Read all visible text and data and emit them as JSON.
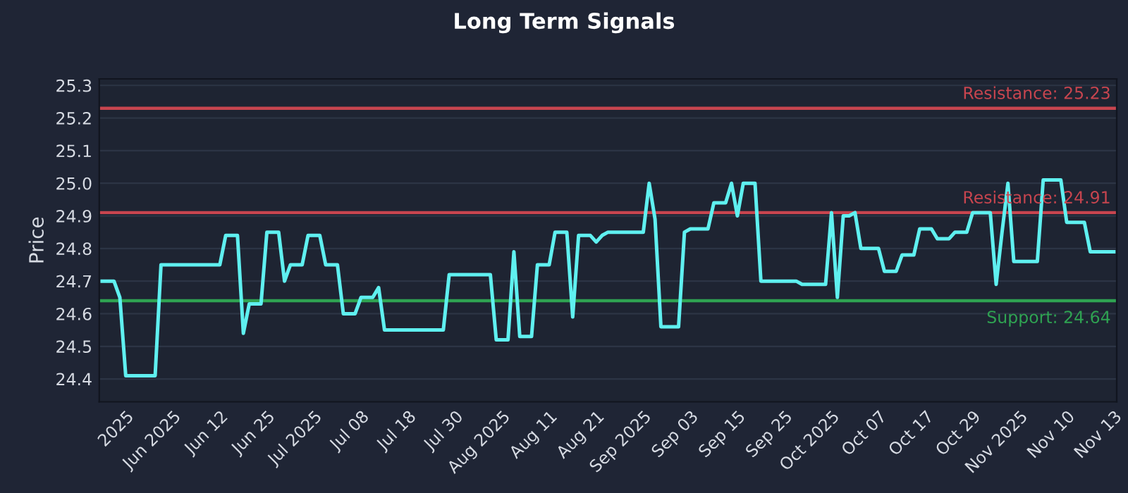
{
  "chart_data": {
    "type": "line",
    "title": "Long Term Signals",
    "ylabel": "Price",
    "categories": [
      null,
      null,
      null,
      null,
      "2025",
      null,
      null,
      null,
      null,
      null,
      null,
      null,
      "Jun 2025",
      null,
      null,
      null,
      null,
      null,
      null,
      null,
      "Jun 12",
      null,
      null,
      null,
      null,
      null,
      null,
      null,
      "Jun 25",
      null,
      null,
      null,
      null,
      null,
      null,
      null,
      "Jul 2025",
      null,
      null,
      null,
      null,
      null,
      null,
      null,
      "Jul 08",
      null,
      null,
      null,
      null,
      null,
      null,
      null,
      "Jul 18",
      null,
      null,
      null,
      null,
      null,
      null,
      null,
      "Jul 30",
      null,
      null,
      null,
      null,
      null,
      null,
      null,
      "Aug 2025",
      null,
      null,
      null,
      null,
      null,
      null,
      null,
      "Aug 11",
      null,
      null,
      null,
      null,
      null,
      null,
      null,
      "Aug 21",
      null,
      null,
      null,
      null,
      null,
      null,
      null,
      "Sep 2025",
      null,
      null,
      null,
      null,
      null,
      null,
      null,
      "Sep 03",
      null,
      null,
      null,
      null,
      null,
      null,
      null,
      "Sep 15",
      null,
      null,
      null,
      null,
      null,
      null,
      null,
      "Sep 25",
      null,
      null,
      null,
      null,
      null,
      null,
      null,
      "Oct 2025",
      null,
      null,
      null,
      null,
      null,
      null,
      null,
      "Oct 07",
      null,
      null,
      null,
      null,
      null,
      null,
      null,
      "Oct 17",
      null,
      null,
      null,
      null,
      null,
      null,
      null,
      "Oct 29",
      null,
      null,
      null,
      null,
      null,
      null,
      null,
      "Nov 2025",
      null,
      null,
      null,
      null,
      null,
      null,
      null,
      "Nov 10",
      null,
      null,
      null,
      null,
      null,
      null,
      null,
      "Nov 13"
    ],
    "series": [
      {
        "color": "#5ff0f0",
        "values": [
          24.7,
          24.7,
          24.7,
          24.65,
          24.41,
          24.41,
          24.41,
          24.41,
          24.41,
          24.41,
          24.75,
          24.75,
          24.75,
          24.75,
          24.75,
          24.75,
          24.75,
          24.75,
          24.75,
          24.75,
          24.75,
          24.84,
          24.84,
          24.84,
          24.54,
          24.63,
          24.63,
          24.63,
          24.85,
          24.85,
          24.85,
          24.7,
          24.75,
          24.75,
          24.75,
          24.84,
          24.84,
          24.84,
          24.75,
          24.75,
          24.75,
          24.6,
          24.6,
          24.6,
          24.65,
          24.65,
          24.65,
          24.68,
          24.55,
          24.55,
          24.55,
          24.55,
          24.55,
          24.55,
          24.55,
          24.55,
          24.55,
          24.55,
          24.55,
          24.72,
          24.72,
          24.72,
          24.72,
          24.72,
          24.72,
          24.72,
          24.72,
          24.52,
          24.52,
          24.52,
          24.79,
          24.53,
          24.53,
          24.53,
          24.75,
          24.75,
          24.75,
          24.85,
          24.85,
          24.85,
          24.59,
          24.84,
          24.84,
          24.84,
          24.82,
          24.84,
          24.85,
          24.85,
          24.85,
          24.85,
          24.85,
          24.85,
          24.85,
          25.0,
          24.89,
          24.56,
          24.56,
          24.56,
          24.56,
          24.85,
          24.86,
          24.86,
          24.86,
          24.86,
          24.94,
          24.94,
          24.94,
          25.0,
          24.9,
          25.0,
          25.0,
          25.0,
          24.7,
          24.7,
          24.7,
          24.7,
          24.7,
          24.7,
          24.7,
          24.69,
          24.69,
          24.69,
          24.69,
          24.69,
          24.91,
          24.65,
          24.9,
          24.9,
          24.91,
          24.8,
          24.8,
          24.8,
          24.8,
          24.73,
          24.73,
          24.73,
          24.78,
          24.78,
          24.78,
          24.86,
          24.86,
          24.86,
          24.83,
          24.83,
          24.83,
          24.85,
          24.85,
          24.85,
          24.91,
          24.91,
          24.91,
          24.91,
          24.69,
          24.85,
          25.0,
          24.76,
          24.76,
          24.76,
          24.76,
          24.76,
          25.01,
          25.01,
          25.01,
          25.01,
          24.88,
          24.88,
          24.88,
          24.88,
          24.79,
          24.79,
          24.79,
          24.79,
          24.79
        ]
      }
    ],
    "ylim": [
      24.33,
      25.32
    ],
    "yticks": [
      {
        "value": 24.4,
        "label": "24.4"
      },
      {
        "value": 24.5,
        "label": "24.5"
      },
      {
        "value": 24.6,
        "label": "24.6"
      },
      {
        "value": 24.7,
        "label": "24.7"
      },
      {
        "value": 24.8,
        "label": "24.8"
      },
      {
        "value": 24.9,
        "label": "24.9"
      },
      {
        "value": 25.0,
        "label": "25.0"
      },
      {
        "value": 25.1,
        "label": "25.1"
      },
      {
        "value": 25.2,
        "label": "25.2"
      },
      {
        "value": 25.3,
        "label": "25.3"
      }
    ],
    "grid": "y",
    "ref_lines": [
      {
        "axis": "y",
        "value": 25.23,
        "label": "Resistance: 25.23",
        "color": "#c8454f"
      },
      {
        "axis": "y",
        "value": 24.91,
        "label": "Resistance: 24.91",
        "color": "#c8454f"
      },
      {
        "axis": "y",
        "value": 24.64,
        "label": "Support: 24.64",
        "color": "#2fa352"
      }
    ]
  }
}
